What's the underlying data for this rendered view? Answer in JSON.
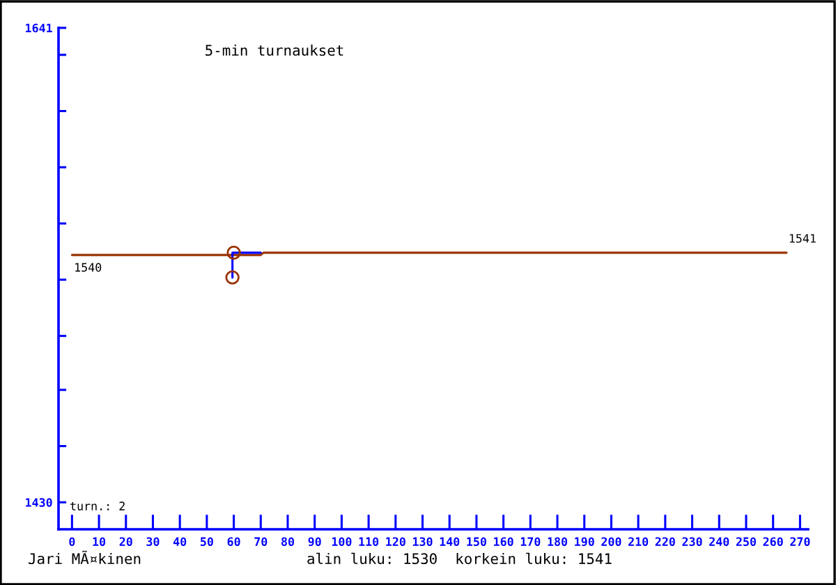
{
  "chart_data": {
    "type": "line",
    "title": "5-min turnaukset",
    "xlim": [
      -5,
      273
    ],
    "xticks": [
      0,
      10,
      20,
      30,
      40,
      50,
      60,
      70,
      80,
      90,
      100,
      110,
      120,
      130,
      140,
      150,
      160,
      170,
      180,
      190,
      200,
      210,
      220,
      230,
      240,
      250,
      260,
      270
    ],
    "ylim": [
      1418,
      1641
    ],
    "yticks": [
      1430,
      {
        "value": 1455,
        "label": null
      },
      {
        "value": 1480,
        "label": null
      },
      {
        "value": 1504,
        "label": null
      },
      {
        "value": 1529,
        "label": null
      },
      {
        "value": 1554,
        "label": null
      },
      {
        "value": 1579,
        "label": null
      },
      {
        "value": 1604,
        "label": null
      },
      {
        "value": 1629,
        "label": null
      },
      1641
    ],
    "series": [
      {
        "color": "#993300",
        "x": [
          0,
          70,
          71,
          265
        ],
        "values": [
          1540,
          1540,
          1541,
          1541
        ],
        "value_labels": [
          "1540",
          null,
          null,
          "1541"
        ]
      },
      {
        "color": "#0000ff",
        "x": [
          59.5,
          59.5,
          70
        ],
        "values": [
          1530,
          1541,
          1541
        ]
      },
      {
        "type": "scatter",
        "color": "#993300",
        "marker": "circle",
        "x": [
          59.5,
          60
        ],
        "values": [
          1530,
          1541
        ]
      }
    ],
    "annotations": [
      "turn.: 2",
      "Jari MÃ¤kinen",
      "alin luku: 1530  korkein luku: 1541"
    ]
  }
}
